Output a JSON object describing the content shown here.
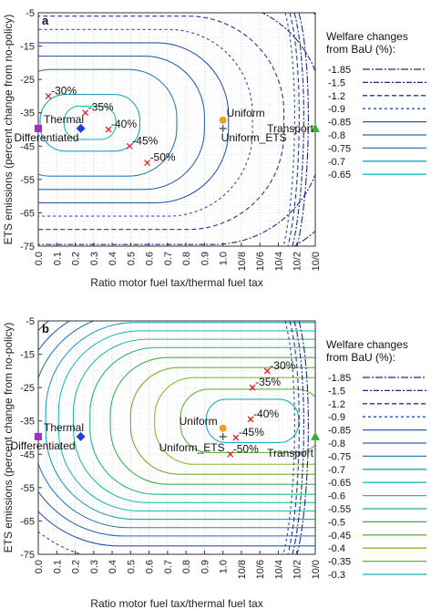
{
  "chart_data": [
    {
      "panel": "a",
      "type": "contour",
      "xlabel": "Ratio motor fuel tax/thermal fuel tax",
      "ylabel": "ETS emissions (percent change from no-policy)",
      "x_ticks": [
        "0.0",
        "0.1",
        "0.2",
        "0.3",
        "0.4",
        "0.5",
        "0.6",
        "0.7",
        "0.8",
        "0.9",
        "1.0",
        "10/8",
        "10/6",
        "10/4",
        "10/2",
        "10/0"
      ],
      "y_ticks": [
        -5,
        -15,
        -25,
        -35,
        -45,
        -55,
        -65,
        -75
      ],
      "ylim": [
        -75,
        -5
      ],
      "legend": {
        "title_line1": "Welfare changes",
        "title_line2": "from BaU (%):",
        "levels": [
          -1.85,
          -1.5,
          -1.2,
          -0.9,
          -0.85,
          -0.8,
          -0.75,
          -0.7,
          -0.65
        ],
        "labels": [
          "-1.85",
          "-1.5",
          "-1.2",
          "-0.9",
          "-0.85",
          "-0.8",
          "-0.75",
          "-0.7",
          "-0.65"
        ],
        "colors": [
          "#1a2a8c",
          "#1a2a8c",
          "#1e3a9a",
          "#2650a8",
          "#2a5aae",
          "#2c66b2",
          "#2a7eb8",
          "#23a0bb",
          "#1fbfb4"
        ],
        "dashes": [
          "8,2,2,2",
          "6,2,2,2",
          "5,3",
          "3,3",
          "",
          "",
          "",
          "",
          ""
        ]
      },
      "contour_centers": {
        "x": 2.8,
        "y": -38
      },
      "contour_radii": [
        [
          1.4,
          5
        ],
        [
          2.7,
          8.5
        ],
        [
          4.7,
          16
        ],
        [
          6.2,
          20
        ],
        [
          7.5,
          24
        ],
        [
          8.8,
          28
        ],
        [
          10.5,
          32
        ],
        [
          12.6,
          36.5
        ],
        [
          14.5,
          42
        ]
      ],
      "markers": [
        {
          "label": "Thermal",
          "x": 0,
          "y": -39.7,
          "shape": "square",
          "color": "#9b30c8"
        },
        {
          "label": "Differentiated",
          "x": 2.3,
          "y": -39.7,
          "shape": "diamond",
          "color": "#1f3fd0"
        },
        {
          "label": "Uniform",
          "x": 10,
          "y": -37.2,
          "shape": "circle",
          "color": "#f0a020"
        },
        {
          "label": "Uniform_ETS",
          "x": 10,
          "y": -39.7,
          "shape": "plus",
          "color": "#555555"
        },
        {
          "label": "Transport",
          "x": 15,
          "y": -39.7,
          "shape": "triangle",
          "color": "#30b030"
        }
      ],
      "reductions": [
        {
          "label": "-30%",
          "x": 0.55,
          "y": -30
        },
        {
          "label": "-35%",
          "x": 2.55,
          "y": -35
        },
        {
          "label": "-40%",
          "x": 3.8,
          "y": -40
        },
        {
          "label": "-45%",
          "x": 4.95,
          "y": -45
        },
        {
          "label": "-50%",
          "x": 5.9,
          "y": -50
        }
      ]
    },
    {
      "panel": "b",
      "type": "contour",
      "xlabel": "Ratio motor fuel tax/thermal fuel tax",
      "ylabel": "ETS emissions (percent change from no-policy)",
      "x_ticks": [
        "0.0",
        "0.1",
        "0.2",
        "0.3",
        "0.4",
        "0.5",
        "0.6",
        "0.7",
        "0.8",
        "0.9",
        "1.0",
        "10/8",
        "10/6",
        "10/4",
        "10/2",
        "10/0"
      ],
      "y_ticks": [
        -5,
        -15,
        -25,
        -35,
        -45,
        -55,
        -65,
        -75
      ],
      "ylim": [
        -75,
        -5
      ],
      "legend": {
        "title_line1": "Welfare changes",
        "title_line2": "from BaU (%):",
        "levels": [
          -1.85,
          -1.5,
          -1.2,
          -0.9,
          -0.85,
          -0.8,
          -0.75,
          -0.7,
          -0.65,
          -0.6,
          -0.55,
          -0.5,
          -0.45,
          -0.4,
          -0.35,
          -0.3
        ],
        "labels": [
          "-1.85",
          "-1.5",
          "-1.2",
          "-0.9",
          "-0.85",
          "-0.8",
          "-0.75",
          "-0.7",
          "-0.65",
          "-0.6",
          "-0.55",
          "-0.5",
          "-0.45",
          "-0.4",
          "-0.35",
          "-0.3"
        ],
        "colors": [
          "#1a2a8c",
          "#1a2a8c",
          "#1e3a9a",
          "#2650a8",
          "#2a5aae",
          "#2c66b2",
          "#2a7eb8",
          "#23a0bb",
          "#1fbfb4",
          "#1fc09a",
          "#22b87c",
          "#3fb050",
          "#6bb030",
          "#8fb52a",
          "#62b040",
          "#1ab0b8"
        ],
        "dashes": [
          "8,2,2,2",
          "6,2,2,2",
          "5,3",
          "3,3",
          "",
          "",
          "",
          "",
          "",
          "",
          "",
          "",
          "",
          "",
          "",
          ""
        ]
      },
      "contour_centers": {
        "x": 11.6,
        "y": -35
      },
      "contour_radii": [
        [
          2.5,
          6.5
        ],
        [
          3.9,
          9.5
        ],
        [
          5.3,
          13
        ],
        [
          6.6,
          16
        ],
        [
          7.7,
          19
        ],
        [
          8.8,
          22
        ],
        [
          9.7,
          24.5
        ],
        [
          10.5,
          27
        ],
        [
          11.2,
          29.5
        ],
        [
          11.9,
          32
        ],
        [
          12.6,
          34.5
        ],
        [
          13.3,
          37.5
        ],
        [
          14.1,
          41.5
        ]
      ],
      "markers": [
        {
          "label": "Thermal",
          "x": 0,
          "y": -39.7,
          "shape": "square",
          "color": "#9b30c8"
        },
        {
          "label": "Differentiated",
          "x": 2.3,
          "y": -39.7,
          "shape": "diamond",
          "color": "#1f3fd0"
        },
        {
          "label": "Uniform",
          "x": 10,
          "y": -37.2,
          "shape": "circle",
          "color": "#f0a020"
        },
        {
          "label": "Uniform_ETS",
          "x": 10,
          "y": -39.7,
          "shape": "plus",
          "color": "#555555"
        },
        {
          "label": "Transport",
          "x": 15,
          "y": -39.7,
          "shape": "triangle",
          "color": "#30b030"
        }
      ],
      "reductions": [
        {
          "label": "-30%",
          "x": 12.4,
          "y": -20
        },
        {
          "label": "-35%",
          "x": 11.6,
          "y": -25
        },
        {
          "label": "-40%",
          "x": 11.5,
          "y": -34.5
        },
        {
          "label": "-45%",
          "x": 10.7,
          "y": -40
        },
        {
          "label": "-50%",
          "x": 10.4,
          "y": -45
        }
      ]
    }
  ]
}
